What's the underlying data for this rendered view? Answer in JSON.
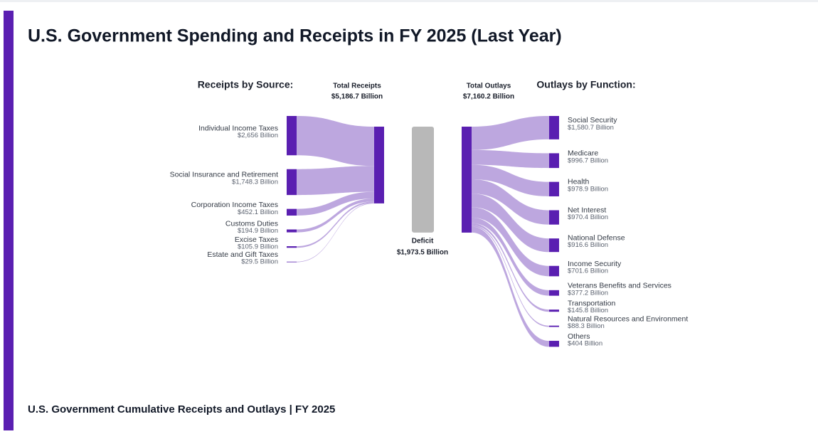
{
  "page_title": "U.S. Government Spending and Receipts in FY 2025 (Last Year)",
  "chart_data": {
    "type": "sankey",
    "receipts_heading": "Receipts by Source:",
    "outlays_heading": "Outlays by Function:",
    "total_receipts": {
      "label": "Total Receipts",
      "value": 5186.7,
      "value_label": "$5,186.7 Billion"
    },
    "deficit": {
      "label": "Deficit",
      "value": 1973.5,
      "value_label": "$1,973.5 Billion"
    },
    "total_outlays": {
      "label": "Total Outlays",
      "value": 7160.2,
      "value_label": "$7,160.2 Billion"
    },
    "sources": {
      "categories": [
        "Individual Income Taxes",
        "Social Insurance and Retirement",
        "Corporation Income Taxes",
        "Customs Duties",
        "Excise Taxes",
        "Estate and Gift Taxes"
      ],
      "values": [
        2656,
        1748.3,
        452.1,
        194.9,
        105.9,
        29.5
      ],
      "value_labels": [
        "$2,656 Billion",
        "$1,748.3 Billion",
        "$452.1 Billion",
        "$194.9 Billion",
        "$105.9 Billion",
        "$29.5 Billion"
      ]
    },
    "functions": {
      "categories": [
        "Social Security",
        "Medicare",
        "Health",
        "Net Interest",
        "National Defense",
        "Income Security",
        "Veterans Benefits and Services",
        "Transportation",
        "Natural Resources and Environment",
        "Others"
      ],
      "values": [
        1580.7,
        996.7,
        978.9,
        970.4,
        916.6,
        701.6,
        377.2,
        145.8,
        88.3,
        404
      ],
      "value_labels": [
        "$1,580.7 Billion",
        "$996.7 Billion",
        "$978.9 Billion",
        "$970.4 Billion",
        "$916.6 Billion",
        "$701.6 Billion",
        "$377.2 Billion",
        "$145.8 Billion",
        "$88.3 Billion",
        "$404 Billion"
      ]
    },
    "node_color": "#5a1fb1",
    "link_color": "#b9a2dd",
    "deficit_color": "#b8b8b8"
  },
  "footer_title": "U.S. Government Cumulative Receipts and Outlays | FY 2025"
}
